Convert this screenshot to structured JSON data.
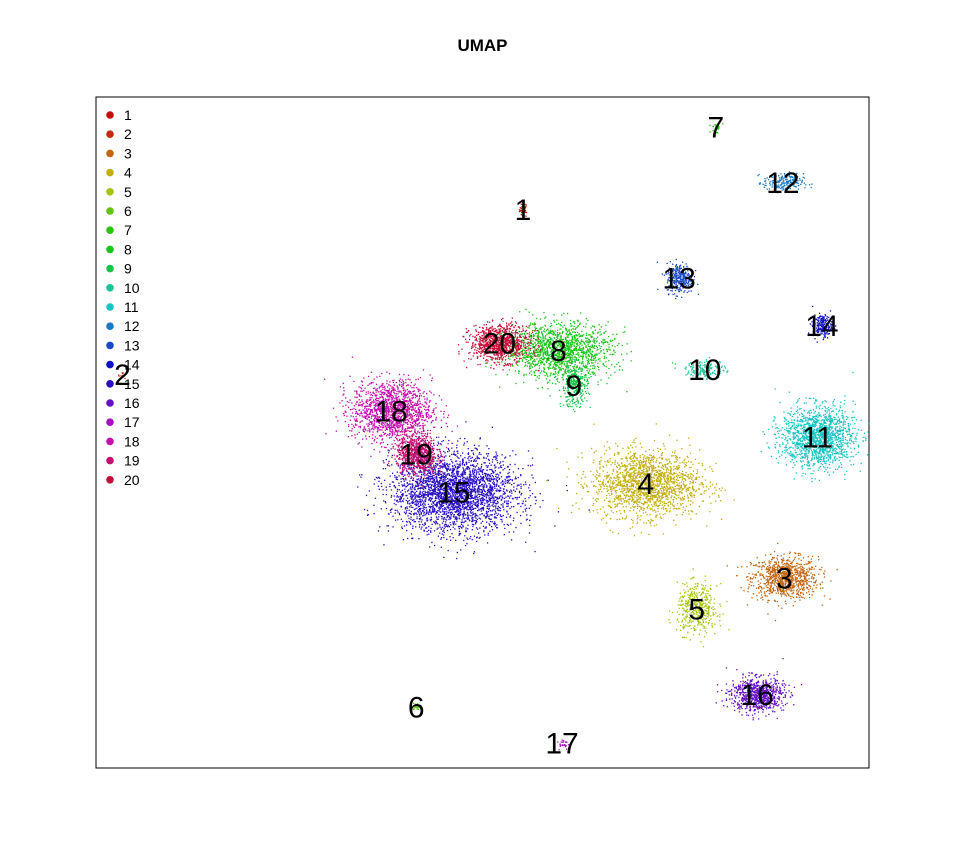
{
  "chart_data": {
    "type": "scatter",
    "title": "UMAP",
    "xlabel": "",
    "ylabel": "",
    "legend_position": "top-left",
    "clusters": [
      {
        "name": "1",
        "color": "#c40f0f",
        "label_pos": [
          0.53,
          0.833
        ],
        "extent": [
          0.006,
          0.012
        ],
        "n": 40
      },
      {
        "name": "2",
        "color": "#c42a0f",
        "label_pos": [
          -0.014,
          0.587
        ],
        "extent": [
          0.008,
          0.006
        ],
        "n": 10
      },
      {
        "name": "3",
        "color": "#c4650f",
        "label_pos": [
          0.885,
          0.284
        ],
        "extent": [
          0.05,
          0.035
        ],
        "n": 900
      },
      {
        "name": "4",
        "color": "#c4ad0f",
        "label_pos": [
          0.697,
          0.425
        ],
        "extent": [
          0.08,
          0.055
        ],
        "n": 1700
      },
      {
        "name": "5",
        "color": "#a7c40f",
        "label_pos": [
          0.766,
          0.238
        ],
        "extent": [
          0.03,
          0.04
        ],
        "n": 450
      },
      {
        "name": "6",
        "color": "#61c40f",
        "label_pos": [
          0.385,
          0.092
        ],
        "extent": [
          0.006,
          0.006
        ],
        "n": 25
      },
      {
        "name": "7",
        "color": "#2ac40f",
        "label_pos": [
          0.792,
          0.956
        ],
        "extent": [
          0.008,
          0.008
        ],
        "n": 30
      },
      {
        "name": "8",
        "color": "#1ac41a",
        "label_pos": [
          0.578,
          0.623
        ],
        "extent": [
          0.08,
          0.045
        ],
        "n": 1500
      },
      {
        "name": "9",
        "color": "#1ac44a",
        "label_pos": [
          0.599,
          0.571
        ],
        "extent": [
          0.02,
          0.035
        ],
        "n": 350
      },
      {
        "name": "10",
        "color": "#1ac497",
        "label_pos": [
          0.777,
          0.595
        ],
        "extent": [
          0.03,
          0.015
        ],
        "n": 160
      },
      {
        "name": "11",
        "color": "#1ac4c4",
        "label_pos": [
          0.93,
          0.494
        ],
        "extent": [
          0.055,
          0.05
        ],
        "n": 1500
      },
      {
        "name": "12",
        "color": "#1a7ac4",
        "label_pos": [
          0.883,
          0.873
        ],
        "extent": [
          0.03,
          0.015
        ],
        "n": 200
      },
      {
        "name": "13",
        "color": "#1a4ac4",
        "label_pos": [
          0.742,
          0.731
        ],
        "extent": [
          0.02,
          0.025
        ],
        "n": 300
      },
      {
        "name": "14",
        "color": "#0f0fc4",
        "label_pos": [
          0.936,
          0.66
        ],
        "extent": [
          0.015,
          0.018
        ],
        "n": 200
      },
      {
        "name": "15",
        "color": "#2a0fc4",
        "label_pos": [
          0.436,
          0.412
        ],
        "extent": [
          0.095,
          0.065
        ],
        "n": 3000
      },
      {
        "name": "16",
        "color": "#650fc4",
        "label_pos": [
          0.848,
          0.11
        ],
        "extent": [
          0.04,
          0.028
        ],
        "n": 800
      },
      {
        "name": "17",
        "color": "#a70fc4",
        "label_pos": [
          0.583,
          0.038
        ],
        "extent": [
          0.008,
          0.008
        ],
        "n": 25
      },
      {
        "name": "18",
        "color": "#c40fad",
        "label_pos": [
          0.351,
          0.533
        ],
        "extent": [
          0.06,
          0.05
        ],
        "n": 1500
      },
      {
        "name": "19",
        "color": "#c40f6f",
        "label_pos": [
          0.385,
          0.469
        ],
        "extent": [
          0.03,
          0.035
        ],
        "n": 800
      },
      {
        "name": "20",
        "color": "#c40f3a",
        "label_pos": [
          0.498,
          0.634
        ],
        "extent": [
          0.045,
          0.03
        ],
        "n": 900
      }
    ],
    "xlim": [
      -0.05,
      1.0
    ],
    "ylim": [
      0.0,
      1.0
    ],
    "grid": false
  }
}
